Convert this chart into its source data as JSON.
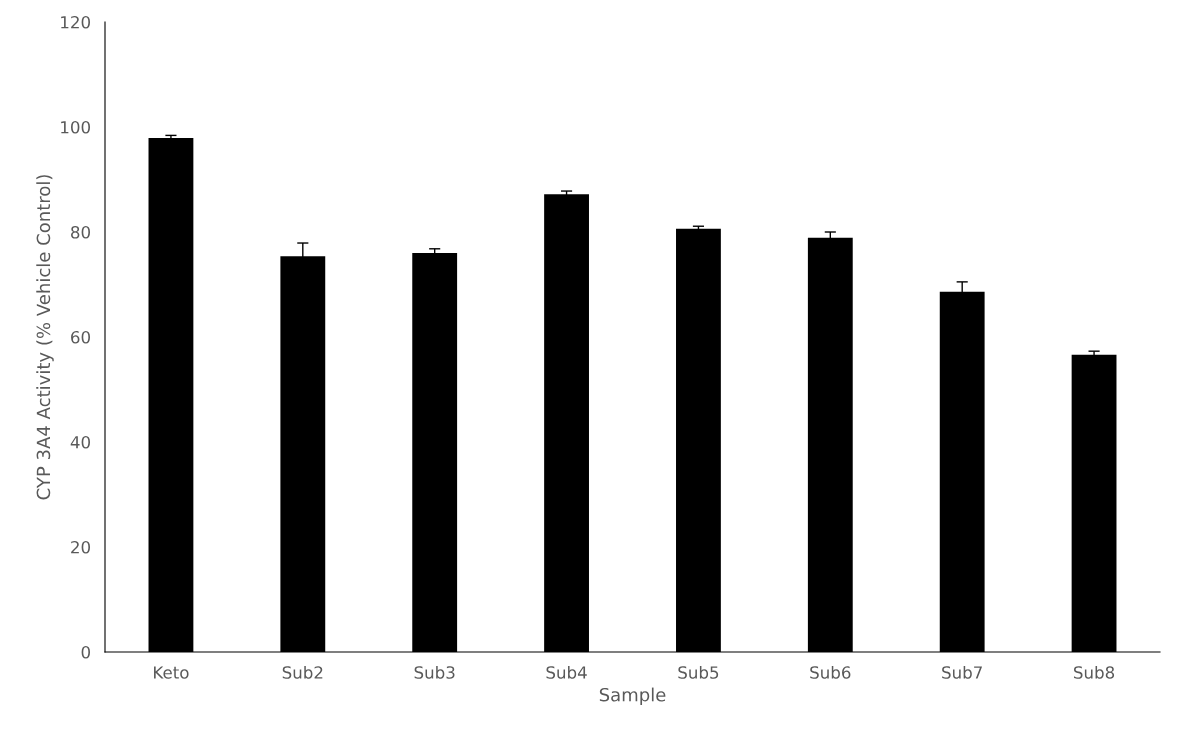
{
  "chart_data": {
    "type": "bar",
    "xlabel": "Sample",
    "ylabel": "CYP 3A4 Activity (% Vehicle Control)",
    "categories": [
      "Keto",
      "Sub2",
      "Sub3",
      "Sub4",
      "Sub5",
      "Sub6",
      "Sub7",
      "Sub8"
    ],
    "values": [
      97.9,
      75.4,
      76.0,
      87.2,
      80.6,
      78.9,
      68.6,
      56.6
    ],
    "errors": [
      0.5,
      2.5,
      0.8,
      0.6,
      0.5,
      1.1,
      1.9,
      0.7
    ],
    "color": "#000000",
    "ylim": [
      0,
      120
    ],
    "yticks": [
      0,
      20,
      40,
      60,
      80,
      100,
      120
    ],
    "grid": false,
    "legend": false
  }
}
